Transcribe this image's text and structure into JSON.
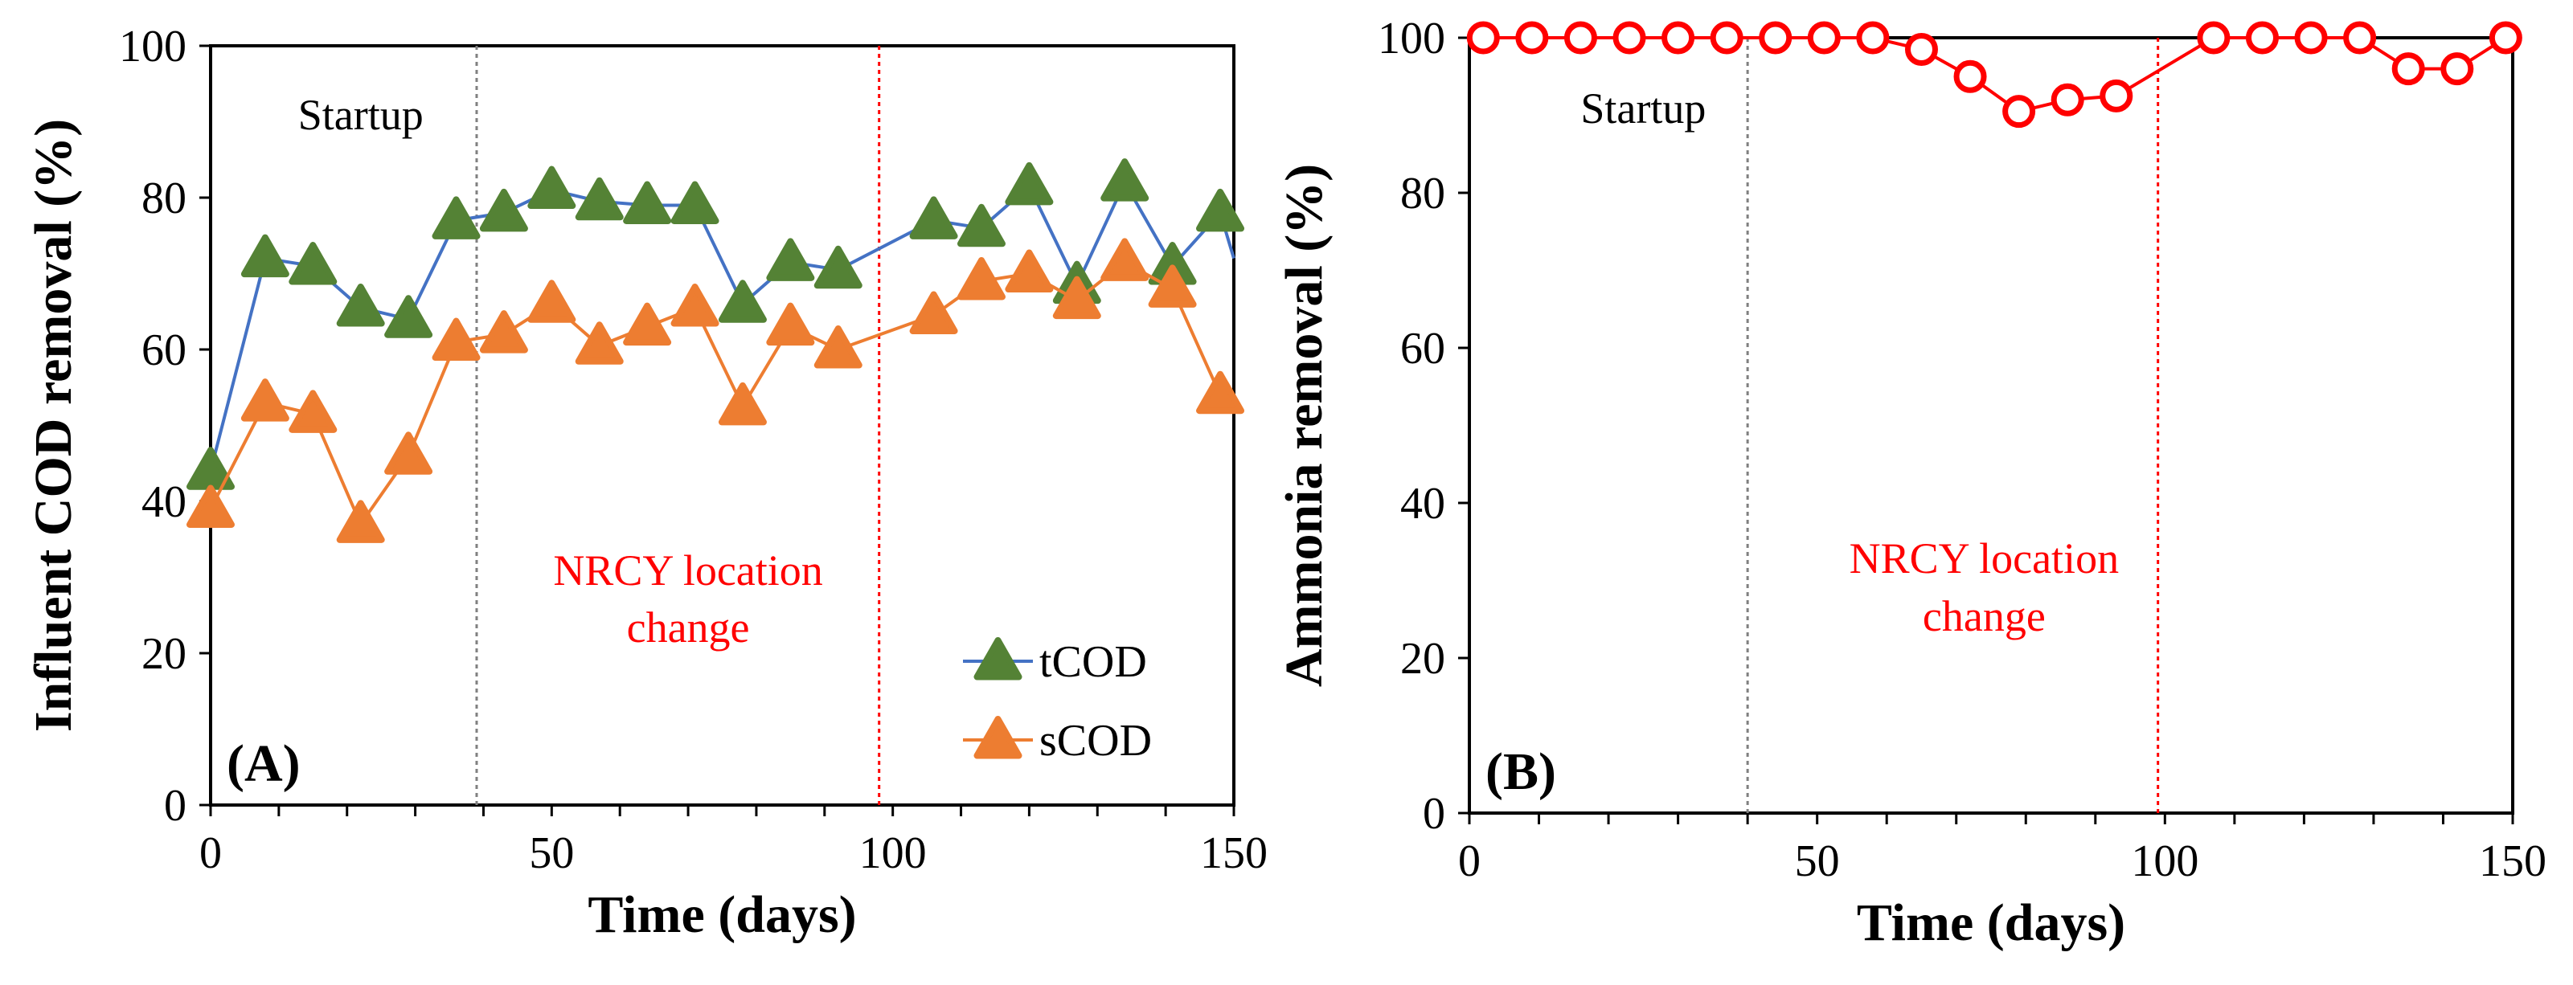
{
  "chart_data": [
    {
      "type": "line",
      "panel_label": "(A)",
      "xlabel": "Time (days)",
      "ylabel": "Influent COD removal (%)",
      "xlim": [
        0,
        150
      ],
      "ylim": [
        0,
        100
      ],
      "x_ticks": [
        0,
        50,
        100,
        150
      ],
      "y_ticks": [
        0,
        20,
        40,
        60,
        80,
        100
      ],
      "grid": false,
      "legend_position": "bottom-right",
      "phase_lines": [
        {
          "x": 39,
          "color": "#808080"
        },
        {
          "x": 98,
          "color": "#ff0000"
        }
      ],
      "annotations": [
        {
          "text": "Startup",
          "x": 22,
          "y": 89,
          "color": "#000000"
        },
        {
          "text": "NRCY location",
          "x": 70,
          "y": 29,
          "color": "#ff0000"
        },
        {
          "text": "change",
          "x": 70,
          "y": 21.5,
          "color": "#ff0000"
        }
      ],
      "series": [
        {
          "name": "tCOD",
          "line_color": "#4472c4",
          "marker_color": "#548235",
          "marker": "triangle",
          "x": [
            0,
            8,
            15,
            22,
            29,
            36,
            43,
            50,
            57,
            64,
            71,
            78,
            85,
            92,
            106,
            113,
            120,
            127,
            134,
            141,
            148,
            150
          ],
          "y": [
            44,
            72,
            71,
            65.5,
            64,
            77,
            78,
            81,
            79.5,
            79,
            79,
            66,
            71.5,
            70.5,
            77,
            76,
            81.5,
            68.5,
            82,
            71,
            78,
            72
          ]
        },
        {
          "name": "sCOD",
          "line_color": "#ed7d31",
          "marker_color": "#ed7d31",
          "marker": "triangle",
          "x": [
            0,
            8,
            15,
            22,
            29,
            36,
            43,
            50,
            57,
            64,
            71,
            78,
            85,
            92,
            106,
            113,
            120,
            127,
            134,
            141,
            148
          ],
          "y": [
            39,
            53,
            51.5,
            37,
            46,
            61,
            62,
            66,
            60.5,
            63,
            65.5,
            52.5,
            63,
            60,
            64.5,
            69,
            70,
            66.5,
            71.5,
            68,
            54
          ]
        }
      ]
    },
    {
      "type": "line",
      "panel_label": "(B)",
      "xlabel": "Time (days)",
      "ylabel": "Ammonia removal (%)",
      "xlim": [
        0,
        150
      ],
      "ylim": [
        0,
        100
      ],
      "x_ticks": [
        0,
        50,
        100,
        150
      ],
      "y_ticks": [
        0,
        20,
        40,
        60,
        80,
        100
      ],
      "grid": false,
      "phase_lines": [
        {
          "x": 40,
          "color": "#808080"
        },
        {
          "x": 99,
          "color": "#ff0000"
        }
      ],
      "annotations": [
        {
          "text": "Startup",
          "x": 25,
          "y": 89,
          "color": "#000000"
        },
        {
          "text": "NRCY location",
          "x": 74,
          "y": 31,
          "color": "#ff0000"
        },
        {
          "text": "change",
          "x": 74,
          "y": 23.5,
          "color": "#ff0000"
        }
      ],
      "series": [
        {
          "name": "Ammonia",
          "line_color": "#ff0000",
          "marker_color": "#ff0000",
          "marker": "open-circle",
          "x": [
            2,
            9,
            16,
            23,
            30,
            37,
            44,
            51,
            58,
            65,
            72,
            79,
            86,
            93,
            107,
            114,
            121,
            128,
            135,
            142,
            149
          ],
          "y": [
            100,
            100,
            100,
            100,
            100,
            100,
            100,
            100,
            100,
            98.5,
            95,
            90.5,
            92,
            92.5,
            100,
            100,
            100,
            100,
            96,
            96,
            100
          ]
        }
      ]
    }
  ]
}
